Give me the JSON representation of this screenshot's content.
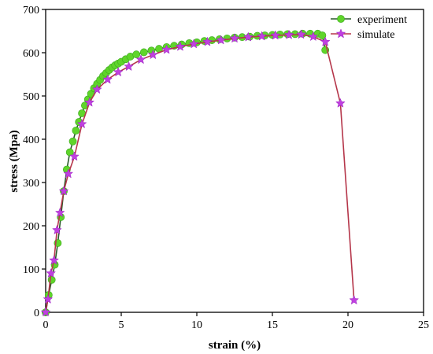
{
  "chart_data": {
    "type": "line",
    "title": "",
    "xlabel": "strain (%)",
    "ylabel": "stress (Mpa)",
    "xlim": [
      0,
      25
    ],
    "ylim": [
      0,
      700
    ],
    "xticks": [
      "0",
      "5",
      "10",
      "15",
      "20",
      "25"
    ],
    "yticks": [
      "0",
      "100",
      "200",
      "300",
      "400",
      "500",
      "600",
      "700"
    ],
    "grid": false,
    "legend_position": "top-right",
    "series": [
      {
        "name": "experiment",
        "line_color": "#2a5a2a",
        "marker_color": "#5fd52a",
        "marker": "circle",
        "x": [
          0.0,
          0.2,
          0.4,
          0.6,
          0.8,
          1.0,
          1.2,
          1.4,
          1.6,
          1.8,
          2.0,
          2.2,
          2.4,
          2.6,
          2.8,
          3.0,
          3.2,
          3.4,
          3.6,
          3.8,
          4.0,
          4.2,
          4.4,
          4.6,
          4.8,
          5.0,
          5.3,
          5.6,
          6.0,
          6.5,
          7.0,
          7.5,
          8.0,
          8.5,
          9.0,
          9.5,
          10.0,
          10.5,
          11.0,
          11.5,
          12.0,
          12.5,
          13.0,
          13.5,
          14.0,
          14.5,
          15.0,
          15.5,
          16.0,
          16.5,
          17.0,
          17.5,
          18.0,
          18.3,
          18.5
        ],
        "y": [
          0,
          40,
          75,
          110,
          160,
          220,
          280,
          330,
          370,
          395,
          420,
          440,
          460,
          478,
          492,
          505,
          518,
          528,
          537,
          546,
          553,
          560,
          566,
          571,
          575,
          579,
          585,
          591,
          596,
          601,
          605,
          609,
          613,
          616,
          619,
          622,
          624,
          627,
          629,
          631,
          633,
          635,
          636,
          637,
          639,
          640,
          641,
          642,
          643,
          643,
          644,
          644,
          644,
          640,
          606
        ]
      },
      {
        "name": "simulate",
        "line_color": "#b5364a",
        "marker_color": "#c040e0",
        "marker": "star",
        "x": [
          0.0,
          0.15,
          0.35,
          0.55,
          0.75,
          0.95,
          1.2,
          1.5,
          1.9,
          2.4,
          2.9,
          3.4,
          4.1,
          4.8,
          5.5,
          6.3,
          7.1,
          8.0,
          8.9,
          9.8,
          10.7,
          11.6,
          12.5,
          13.4,
          14.3,
          15.2,
          16.1,
          16.9,
          17.7,
          18.5,
          19.5,
          20.4
        ],
        "y": [
          0,
          30,
          90,
          120,
          190,
          230,
          280,
          320,
          360,
          435,
          485,
          515,
          538,
          555,
          568,
          584,
          595,
          607,
          614,
          620,
          625,
          629,
          633,
          636,
          638,
          640,
          641,
          642,
          637,
          625,
          483,
          28
        ]
      }
    ]
  }
}
